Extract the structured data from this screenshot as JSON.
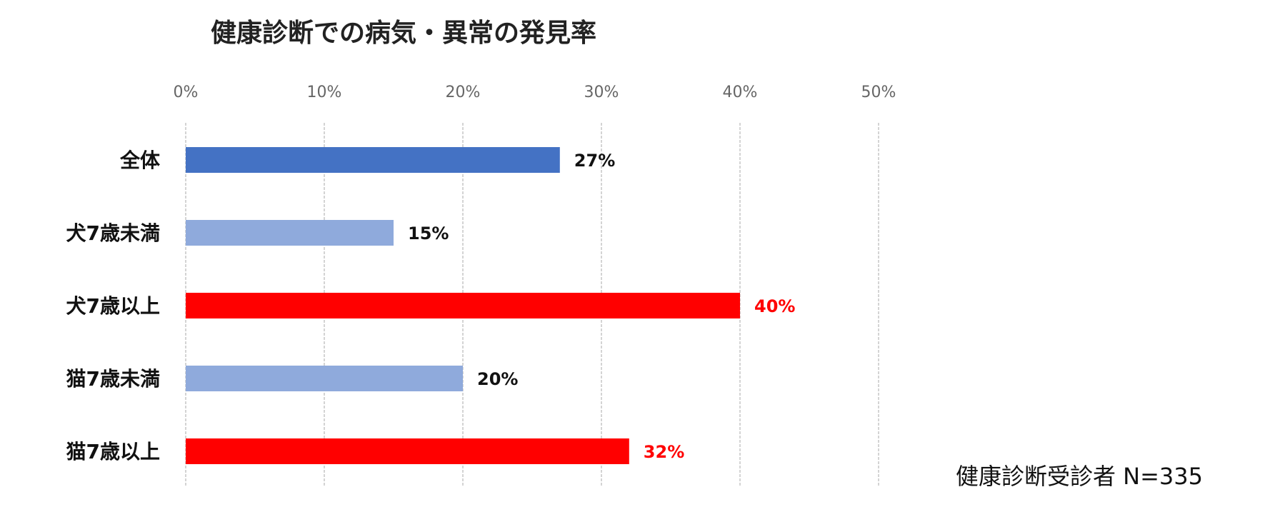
{
  "chart_data": {
    "type": "bar",
    "orientation": "horizontal",
    "title": "健康診断での病気・異常の発見率",
    "categories": [
      "全体",
      "犬7歳未満",
      "犬7歳以上",
      "猫7歳未満",
      "猫7歳以上"
    ],
    "values": [
      27,
      15,
      40,
      20,
      32
    ],
    "value_labels": [
      "27%",
      "15%",
      "40%",
      "20%",
      "32%"
    ],
    "bar_colors": [
      "#4472C4",
      "#8FAADC",
      "#FF0000",
      "#8FAADC",
      "#FF0000"
    ],
    "label_colors": [
      "#111111",
      "#111111",
      "#FF0000",
      "#111111",
      "#FF0000"
    ],
    "xlim": [
      0,
      50
    ],
    "xticks": [
      0,
      10,
      20,
      30,
      40,
      50
    ],
    "xtick_labels": [
      "0%",
      "10%",
      "20%",
      "30%",
      "40%",
      "50%"
    ],
    "axis_position": "top",
    "grid": true,
    "xlabel": "",
    "ylabel": ""
  },
  "note": "健康診断受診者 N=335"
}
